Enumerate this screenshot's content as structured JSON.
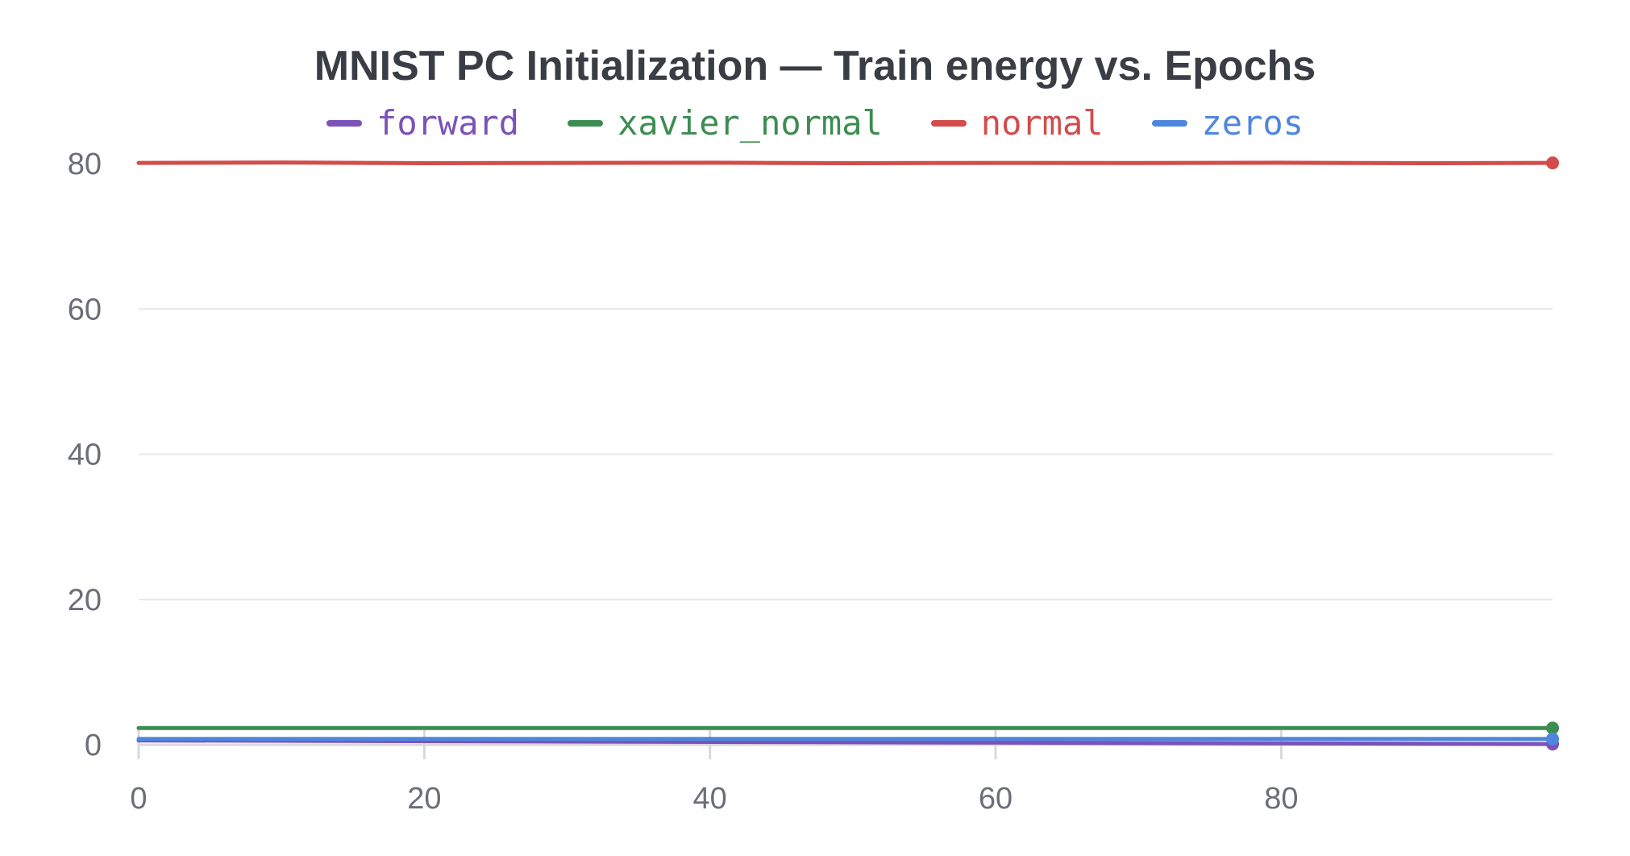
{
  "chart_data": {
    "type": "line",
    "title": "MNIST PC Initialization — Train energy vs. Epochs",
    "xlabel": "",
    "ylabel": "",
    "xlim": [
      0,
      99
    ],
    "ylim": [
      0,
      80
    ],
    "x_ticks": [
      0,
      20,
      40,
      60,
      80
    ],
    "y_ticks": [
      0,
      20,
      40,
      60,
      80
    ],
    "grid": "horizontal",
    "legend_position": "top",
    "series": [
      {
        "name": "forward",
        "color": "#7b52b9",
        "x": [
          0,
          99
        ],
        "y": [
          0.6,
          0.1
        ]
      },
      {
        "name": "xavier_normal",
        "color": "#3d8c52",
        "x": [
          0,
          99
        ],
        "y": [
          2.3,
          2.3
        ]
      },
      {
        "name": "normal",
        "color": "#d24c4c",
        "x": [
          0,
          10,
          20,
          30,
          40,
          50,
          60,
          70,
          80,
          90,
          99
        ],
        "y": [
          80.1,
          80.15,
          80.05,
          80.1,
          80.12,
          80.05,
          80.1,
          80.08,
          80.12,
          80.06,
          80.1
        ]
      },
      {
        "name": "zeros",
        "color": "#4f86dd",
        "x": [
          0,
          99
        ],
        "y": [
          0.8,
          0.8
        ]
      }
    ]
  }
}
